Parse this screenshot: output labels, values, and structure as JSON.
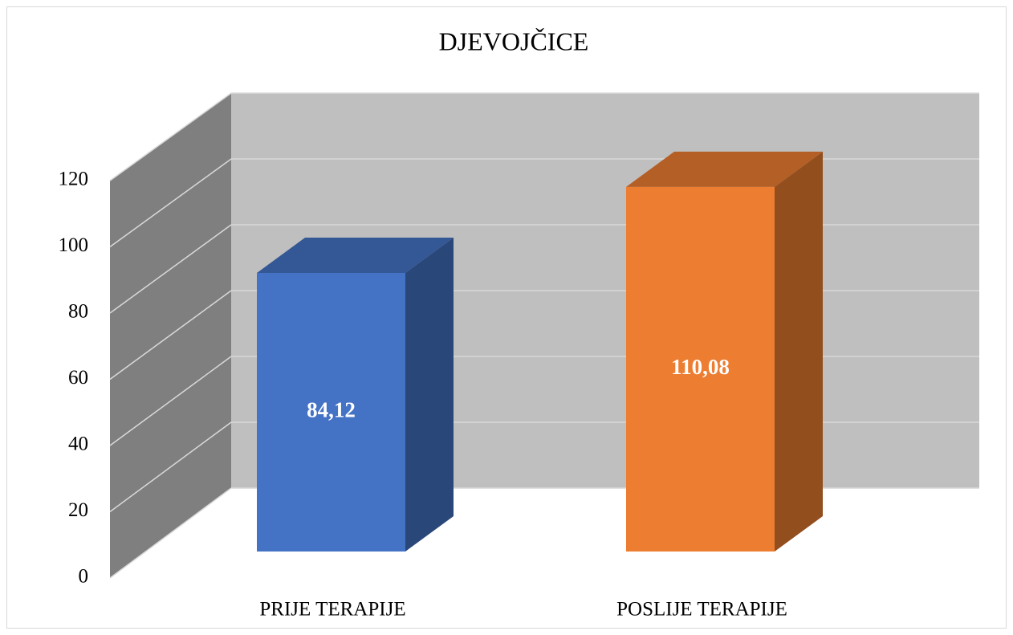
{
  "chart_data": {
    "type": "bar3d",
    "title": "DJEVOJČICE",
    "categories": [
      "PRIJE TERAPIJE",
      "POSLIJE TERAPIJE"
    ],
    "values": [
      84.12,
      110.08
    ],
    "value_labels": [
      "84,12",
      "110,08"
    ],
    "colors": [
      "#4472c4",
      "#ed7d31"
    ],
    "ylim": [
      0,
      120
    ],
    "yticks": [
      0,
      20,
      40,
      60,
      80,
      100,
      120
    ],
    "grid": true
  }
}
